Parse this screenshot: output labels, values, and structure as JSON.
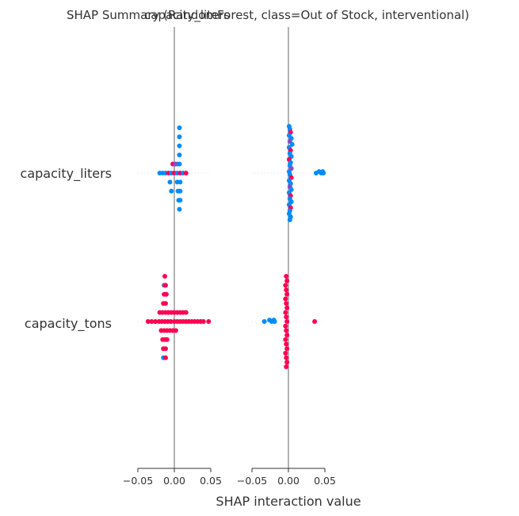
{
  "chart_data": {
    "type": "scatter",
    "title_left": "SHAP Summary (RandomForest, class=Out of Stock, interventional)",
    "title_right": "capacity_liters",
    "xlabel": "SHAP interaction value",
    "xlim": [
      -0.05,
      0.05
    ],
    "xticks": [
      "−0.05",
      "0.00",
      "0.05"
    ],
    "grid": false,
    "features": [
      "capacity_liters",
      "capacity_tons"
    ],
    "panels": [
      {
        "name": "capacity_liters",
        "rows": [
          {
            "feature": "capacity_liters",
            "points": [
              {
                "x": 0.007,
                "y": 0.6,
                "c": "#008bfb"
              },
              {
                "x": 0.007,
                "y": 0.48,
                "c": "#008bfb"
              },
              {
                "x": 0.007,
                "y": 0.36,
                "c": "#008bfb"
              },
              {
                "x": 0.007,
                "y": 0.24,
                "c": "#008bfb"
              },
              {
                "x": 0.007,
                "y": 0.12,
                "c": "#008bfb"
              },
              {
                "x": 0.004,
                "y": 0.12,
                "c": "#008bfb"
              },
              {
                "x": -0.002,
                "y": 0.12,
                "c": "#ff0052"
              },
              {
                "x": 0.001,
                "y": 0.12,
                "c": "#8a4bc8"
              },
              {
                "x": -0.02,
                "y": 0.0,
                "c": "#008bfb"
              },
              {
                "x": -0.016,
                "y": 0.0,
                "c": "#008bfb"
              },
              {
                "x": -0.012,
                "y": 0.0,
                "c": "#008bfb"
              },
              {
                "x": -0.008,
                "y": 0.0,
                "c": "#ff0052"
              },
              {
                "x": -0.004,
                "y": 0.0,
                "c": "#008bfb"
              },
              {
                "x": 0.0,
                "y": 0.0,
                "c": "#ff0052"
              },
              {
                "x": 0.004,
                "y": 0.0,
                "c": "#008bfb"
              },
              {
                "x": 0.008,
                "y": 0.0,
                "c": "#ff0052"
              },
              {
                "x": 0.012,
                "y": 0.0,
                "c": "#008bfb"
              },
              {
                "x": 0.016,
                "y": 0.0,
                "c": "#ff0052"
              },
              {
                "x": -0.006,
                "y": -0.12,
                "c": "#008bfb"
              },
              {
                "x": 0.004,
                "y": -0.12,
                "c": "#008bfb"
              },
              {
                "x": 0.008,
                "y": -0.12,
                "c": "#008bfb"
              },
              {
                "x": -0.004,
                "y": -0.24,
                "c": "#008bfb"
              },
              {
                "x": 0.005,
                "y": -0.24,
                "c": "#008bfb"
              },
              {
                "x": 0.008,
                "y": -0.24,
                "c": "#008bfb"
              },
              {
                "x": 0.006,
                "y": -0.36,
                "c": "#008bfb"
              },
              {
                "x": 0.008,
                "y": -0.36,
                "c": "#008bfb"
              },
              {
                "x": 0.007,
                "y": -0.48,
                "c": "#008bfb"
              }
            ]
          },
          {
            "feature": "capacity_tons",
            "points": [
              {
                "x": -0.013,
                "y": 0.6,
                "c": "#ff0052"
              },
              {
                "x": -0.014,
                "y": 0.48,
                "c": "#8a4bc8"
              },
              {
                "x": -0.012,
                "y": 0.48,
                "c": "#ff0052"
              },
              {
                "x": -0.014,
                "y": 0.36,
                "c": "#ff0052"
              },
              {
                "x": -0.011,
                "y": 0.36,
                "c": "#ff0052"
              },
              {
                "x": -0.015,
                "y": 0.24,
                "c": "#ff0052"
              },
              {
                "x": -0.012,
                "y": 0.24,
                "c": "#ff0052"
              },
              {
                "x": -0.02,
                "y": 0.12,
                "c": "#ff0052"
              },
              {
                "x": -0.016,
                "y": 0.12,
                "c": "#ff0052"
              },
              {
                "x": -0.012,
                "y": 0.12,
                "c": "#ff0052"
              },
              {
                "x": -0.008,
                "y": 0.12,
                "c": "#ff0052"
              },
              {
                "x": -0.004,
                "y": 0.12,
                "c": "#ff0052"
              },
              {
                "x": 0.0,
                "y": 0.12,
                "c": "#ff0052"
              },
              {
                "x": 0.004,
                "y": 0.12,
                "c": "#ff0052"
              },
              {
                "x": 0.008,
                "y": 0.12,
                "c": "#ff0052"
              },
              {
                "x": 0.012,
                "y": 0.12,
                "c": "#ff0052"
              },
              {
                "x": 0.016,
                "y": 0.12,
                "c": "#ff0052"
              },
              {
                "x": -0.036,
                "y": 0.0,
                "c": "#ff0052"
              },
              {
                "x": -0.031,
                "y": 0.0,
                "c": "#ff0052"
              },
              {
                "x": -0.026,
                "y": 0.0,
                "c": "#ff0052"
              },
              {
                "x": -0.021,
                "y": 0.0,
                "c": "#ff0052"
              },
              {
                "x": -0.017,
                "y": 0.0,
                "c": "#ff0052"
              },
              {
                "x": -0.013,
                "y": 0.0,
                "c": "#ff0052"
              },
              {
                "x": -0.009,
                "y": 0.0,
                "c": "#ff0052"
              },
              {
                "x": -0.005,
                "y": 0.0,
                "c": "#ff0052"
              },
              {
                "x": 0.0,
                "y": 0.0,
                "c": "#ff0052"
              },
              {
                "x": 0.004,
                "y": 0.0,
                "c": "#ff0052"
              },
              {
                "x": 0.008,
                "y": 0.0,
                "c": "#ff0052"
              },
              {
                "x": 0.012,
                "y": 0.0,
                "c": "#ff0052"
              },
              {
                "x": 0.016,
                "y": 0.0,
                "c": "#ff0052"
              },
              {
                "x": 0.02,
                "y": 0.0,
                "c": "#ff0052"
              },
              {
                "x": 0.024,
                "y": 0.0,
                "c": "#ff0052"
              },
              {
                "x": 0.028,
                "y": 0.0,
                "c": "#ff0052"
              },
              {
                "x": 0.032,
                "y": 0.0,
                "c": "#ff0052"
              },
              {
                "x": 0.036,
                "y": 0.0,
                "c": "#ff0052"
              },
              {
                "x": 0.04,
                "y": 0.0,
                "c": "#ff0052"
              },
              {
                "x": 0.047,
                "y": 0.0,
                "c": "#ff0052"
              },
              {
                "x": -0.018,
                "y": -0.12,
                "c": "#ff0052"
              },
              {
                "x": -0.014,
                "y": -0.12,
                "c": "#ff0052"
              },
              {
                "x": -0.01,
                "y": -0.12,
                "c": "#ff0052"
              },
              {
                "x": -0.006,
                "y": -0.12,
                "c": "#ff0052"
              },
              {
                "x": -0.002,
                "y": -0.12,
                "c": "#ff0052"
              },
              {
                "x": 0.002,
                "y": -0.12,
                "c": "#ff0052"
              },
              {
                "x": -0.016,
                "y": -0.24,
                "c": "#ff0052"
              },
              {
                "x": -0.013,
                "y": -0.24,
                "c": "#ff0052"
              },
              {
                "x": -0.01,
                "y": -0.24,
                "c": "#ff0052"
              },
              {
                "x": -0.015,
                "y": -0.36,
                "c": "#ff0052"
              },
              {
                "x": -0.012,
                "y": -0.36,
                "c": "#ff0052"
              },
              {
                "x": -0.015,
                "y": -0.48,
                "c": "#008bfb"
              },
              {
                "x": -0.012,
                "y": -0.48,
                "c": "#ff0052"
              }
            ]
          }
        ]
      },
      {
        "name": "capacity_tons",
        "rows": [
          {
            "feature": "capacity_liters",
            "points": [
              {
                "x": 0.001,
                "y": 0.62,
                "c": "#008bfb"
              },
              {
                "x": 0.002,
                "y": 0.58,
                "c": "#008bfb"
              },
              {
                "x": 0.003,
                "y": 0.54,
                "c": "#ff0052"
              },
              {
                "x": 0.001,
                "y": 0.5,
                "c": "#008bfb"
              },
              {
                "x": 0.004,
                "y": 0.46,
                "c": "#008bfb"
              },
              {
                "x": 0.002,
                "y": 0.42,
                "c": "#8a4bc8"
              },
              {
                "x": 0.005,
                "y": 0.38,
                "c": "#008bfb"
              },
              {
                "x": 0.001,
                "y": 0.34,
                "c": "#008bfb"
              },
              {
                "x": 0.003,
                "y": 0.3,
                "c": "#ff0052"
              },
              {
                "x": 0.002,
                "y": 0.26,
                "c": "#008bfb"
              },
              {
                "x": 0.004,
                "y": 0.22,
                "c": "#008bfb"
              },
              {
                "x": 0.001,
                "y": 0.18,
                "c": "#ff0052"
              },
              {
                "x": 0.003,
                "y": 0.14,
                "c": "#008bfb"
              },
              {
                "x": 0.002,
                "y": 0.1,
                "c": "#008bfb"
              },
              {
                "x": 0.004,
                "y": 0.06,
                "c": "#8a4bc8"
              },
              {
                "x": 0.001,
                "y": 0.02,
                "c": "#008bfb"
              },
              {
                "x": 0.038,
                "y": 0.0,
                "c": "#008bfb"
              },
              {
                "x": 0.042,
                "y": 0.02,
                "c": "#008bfb"
              },
              {
                "x": 0.045,
                "y": 0.0,
                "c": "#008bfb"
              },
              {
                "x": 0.047,
                "y": 0.02,
                "c": "#008bfb"
              },
              {
                "x": 0.048,
                "y": 0.0,
                "c": "#008bfb"
              },
              {
                "x": 0.002,
                "y": -0.02,
                "c": "#008bfb"
              },
              {
                "x": 0.004,
                "y": -0.06,
                "c": "#ff0052"
              },
              {
                "x": 0.001,
                "y": -0.1,
                "c": "#008bfb"
              },
              {
                "x": 0.003,
                "y": -0.14,
                "c": "#008bfb"
              },
              {
                "x": 0.002,
                "y": -0.18,
                "c": "#8a4bc8"
              },
              {
                "x": 0.004,
                "y": -0.22,
                "c": "#008bfb"
              },
              {
                "x": 0.001,
                "y": -0.26,
                "c": "#008bfb"
              },
              {
                "x": 0.003,
                "y": -0.3,
                "c": "#ff0052"
              },
              {
                "x": 0.002,
                "y": -0.34,
                "c": "#008bfb"
              },
              {
                "x": 0.004,
                "y": -0.38,
                "c": "#008bfb"
              },
              {
                "x": 0.001,
                "y": -0.42,
                "c": "#008bfb"
              },
              {
                "x": 0.003,
                "y": -0.46,
                "c": "#ff0052"
              },
              {
                "x": 0.002,
                "y": -0.5,
                "c": "#008bfb"
              },
              {
                "x": 0.001,
                "y": -0.54,
                "c": "#008bfb"
              },
              {
                "x": 0.003,
                "y": -0.58,
                "c": "#008bfb"
              },
              {
                "x": 0.002,
                "y": -0.62,
                "c": "#008bfb"
              }
            ]
          },
          {
            "feature": "capacity_tons",
            "points": [
              {
                "x": -0.003,
                "y": 0.6,
                "c": "#ff0052"
              },
              {
                "x": -0.002,
                "y": 0.54,
                "c": "#ff0052"
              },
              {
                "x": -0.004,
                "y": 0.48,
                "c": "#ff0052"
              },
              {
                "x": -0.003,
                "y": 0.42,
                "c": "#ff0052"
              },
              {
                "x": -0.002,
                "y": 0.36,
                "c": "#ff0052"
              },
              {
                "x": -0.004,
                "y": 0.3,
                "c": "#ff0052"
              },
              {
                "x": -0.003,
                "y": 0.24,
                "c": "#ff0052"
              },
              {
                "x": -0.002,
                "y": 0.18,
                "c": "#ff0052"
              },
              {
                "x": -0.004,
                "y": 0.12,
                "c": "#ff0052"
              },
              {
                "x": -0.003,
                "y": 0.06,
                "c": "#ff0052"
              },
              {
                "x": -0.033,
                "y": 0.0,
                "c": "#008bfb"
              },
              {
                "x": -0.026,
                "y": 0.02,
                "c": "#008bfb"
              },
              {
                "x": -0.023,
                "y": 0.0,
                "c": "#008bfb"
              },
              {
                "x": -0.02,
                "y": 0.02,
                "c": "#008bfb"
              },
              {
                "x": -0.019,
                "y": 0.0,
                "c": "#008bfb"
              },
              {
                "x": -0.002,
                "y": 0.0,
                "c": "#ff0052"
              },
              {
                "x": 0.036,
                "y": 0.0,
                "c": "#ff0052"
              },
              {
                "x": -0.004,
                "y": -0.06,
                "c": "#ff0052"
              },
              {
                "x": -0.003,
                "y": -0.12,
                "c": "#ff0052"
              },
              {
                "x": -0.002,
                "y": -0.18,
                "c": "#ff0052"
              },
              {
                "x": -0.004,
                "y": -0.24,
                "c": "#ff0052"
              },
              {
                "x": -0.003,
                "y": -0.3,
                "c": "#ff0052"
              },
              {
                "x": -0.002,
                "y": -0.36,
                "c": "#ff0052"
              },
              {
                "x": -0.004,
                "y": -0.42,
                "c": "#ff0052"
              },
              {
                "x": -0.003,
                "y": -0.48,
                "c": "#ff0052"
              },
              {
                "x": -0.002,
                "y": -0.54,
                "c": "#ff0052"
              },
              {
                "x": -0.003,
                "y": -0.6,
                "c": "#ff0052"
              }
            ]
          }
        ]
      }
    ]
  }
}
